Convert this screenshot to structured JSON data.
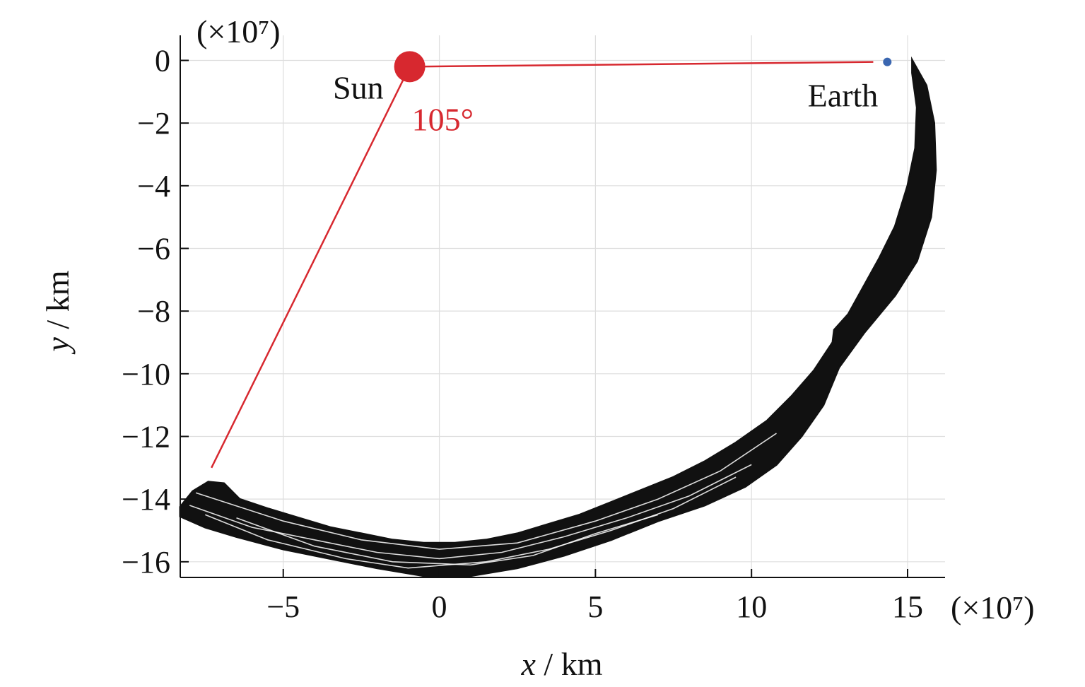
{
  "chart_data": {
    "type": "line",
    "title": "",
    "xlabel": {
      "var": "x",
      "unit": " / km"
    },
    "ylabel": {
      "var": "y",
      "unit": " / km"
    },
    "x_multiplier": "(×10⁷)",
    "y_multiplier": "(×10⁷)",
    "xlim": [
      -8.3,
      16.2
    ],
    "ylim": [
      -16.5,
      0.8
    ],
    "xticks": [
      -5,
      0,
      5,
      10,
      15
    ],
    "yticks": [
      0,
      -2,
      -4,
      -6,
      -8,
      -10,
      -12,
      -14,
      -16
    ],
    "xtick_labels": [
      "−5",
      "0",
      "5",
      "10",
      "15"
    ],
    "ytick_labels": [
      "0",
      "−2",
      "−4",
      "−6",
      "−8",
      "−10",
      "−12",
      "−14",
      "−16"
    ],
    "grid": true,
    "colors": {
      "trajectory": "#111111",
      "sun": "#d7282f",
      "earth": "#3a66b0",
      "angle_lines": "#d7282f"
    },
    "points": [
      {
        "name": "Sun",
        "x": -0.95,
        "y": -0.2,
        "color": "#d7282f"
      },
      {
        "name": "Earth",
        "x": 14.35,
        "y": -0.05,
        "color": "#3a66b0"
      }
    ],
    "angle_lines": [
      {
        "from": [
          -0.95,
          -0.2
        ],
        "to": [
          13.9,
          -0.05
        ]
      },
      {
        "from": [
          -0.95,
          -0.2
        ],
        "to": [
          -7.3,
          -13.0
        ]
      }
    ],
    "angle_annotation": "105°",
    "series": [
      {
        "band_outer": [
          [
            15.15,
            0.0
          ],
          [
            15.6,
            -0.8
          ],
          [
            15.85,
            -2.0
          ],
          [
            15.9,
            -3.5
          ],
          [
            15.75,
            -5.0
          ],
          [
            15.3,
            -6.4
          ],
          [
            14.6,
            -7.5
          ],
          [
            13.6,
            -8.7
          ],
          [
            12.8,
            -9.8
          ],
          [
            12.3,
            -11.0
          ],
          [
            11.6,
            -12.0
          ],
          [
            10.8,
            -12.9
          ],
          [
            9.8,
            -13.6
          ],
          [
            8.5,
            -14.2
          ],
          [
            7.0,
            -14.7
          ],
          [
            5.5,
            -15.3
          ],
          [
            4.0,
            -15.8
          ],
          [
            2.5,
            -16.2
          ],
          [
            1.0,
            -16.45
          ],
          [
            -0.5,
            -16.45
          ],
          [
            -2.0,
            -16.2
          ],
          [
            -3.5,
            -15.9
          ],
          [
            -5.0,
            -15.6
          ],
          [
            -6.5,
            -15.2
          ],
          [
            -7.5,
            -14.9
          ],
          [
            -8.3,
            -14.55
          ]
        ],
        "band_inner": [
          [
            -8.3,
            -14.25
          ],
          [
            -7.9,
            -13.75
          ],
          [
            -7.4,
            -13.45
          ],
          [
            -6.9,
            -13.5
          ],
          [
            -6.4,
            -14.0
          ],
          [
            -5.5,
            -14.3
          ],
          [
            -4.5,
            -14.6
          ],
          [
            -3.5,
            -14.9
          ],
          [
            -2.5,
            -15.1
          ],
          [
            -1.5,
            -15.3
          ],
          [
            -0.5,
            -15.4
          ],
          [
            0.5,
            -15.4
          ],
          [
            1.5,
            -15.3
          ],
          [
            2.5,
            -15.1
          ],
          [
            3.5,
            -14.8
          ],
          [
            4.5,
            -14.5
          ],
          [
            5.5,
            -14.1
          ],
          [
            6.5,
            -13.7
          ],
          [
            7.5,
            -13.3
          ],
          [
            8.5,
            -12.8
          ],
          [
            9.5,
            -12.2
          ],
          [
            10.5,
            -11.5
          ],
          [
            11.3,
            -10.7
          ],
          [
            12.0,
            -9.9
          ],
          [
            12.6,
            -9.0
          ],
          [
            12.65,
            -8.6
          ],
          [
            13.1,
            -8.1
          ],
          [
            13.6,
            -7.2
          ],
          [
            14.1,
            -6.3
          ],
          [
            14.6,
            -5.3
          ],
          [
            15.0,
            -4.0
          ],
          [
            15.25,
            -2.8
          ],
          [
            15.3,
            -1.5
          ],
          [
            15.15,
            -0.4
          ],
          [
            15.15,
            0.0
          ]
        ],
        "strands": [
          [
            [
              -8.0,
              -14.2
            ],
            [
              -6.0,
              -14.9
            ],
            [
              -4.0,
              -15.3
            ],
            [
              -2.0,
              -15.7
            ],
            [
              0.0,
              -15.9
            ],
            [
              2.0,
              -15.7
            ],
            [
              4.0,
              -15.2
            ],
            [
              6.0,
              -14.6
            ],
            [
              8.0,
              -13.9
            ],
            [
              10.0,
              -12.9
            ]
          ],
          [
            [
              -7.5,
              -14.5
            ],
            [
              -5.5,
              -15.3
            ],
            [
              -3.0,
              -15.9
            ],
            [
              -1.0,
              -16.2
            ],
            [
              1.5,
              -16.0
            ],
            [
              3.5,
              -15.6
            ],
            [
              5.5,
              -15.0
            ],
            [
              7.5,
              -14.3
            ],
            [
              9.5,
              -13.3
            ]
          ],
          [
            [
              -7.8,
              -13.8
            ],
            [
              -5.0,
              -14.7
            ],
            [
              -2.5,
              -15.3
            ],
            [
              0.0,
              -15.6
            ],
            [
              2.5,
              -15.4
            ],
            [
              5.0,
              -14.7
            ],
            [
              7.0,
              -14.0
            ],
            [
              9.0,
              -13.1
            ],
            [
              10.8,
              -11.9
            ]
          ],
          [
            [
              -6.5,
              -14.6
            ],
            [
              -4.0,
              -15.5
            ],
            [
              -1.5,
              -16.0
            ],
            [
              1.0,
              -16.1
            ],
            [
              3.0,
              -15.8
            ],
            [
              5.0,
              -15.1
            ],
            [
              7.0,
              -14.5
            ]
          ]
        ]
      }
    ]
  }
}
